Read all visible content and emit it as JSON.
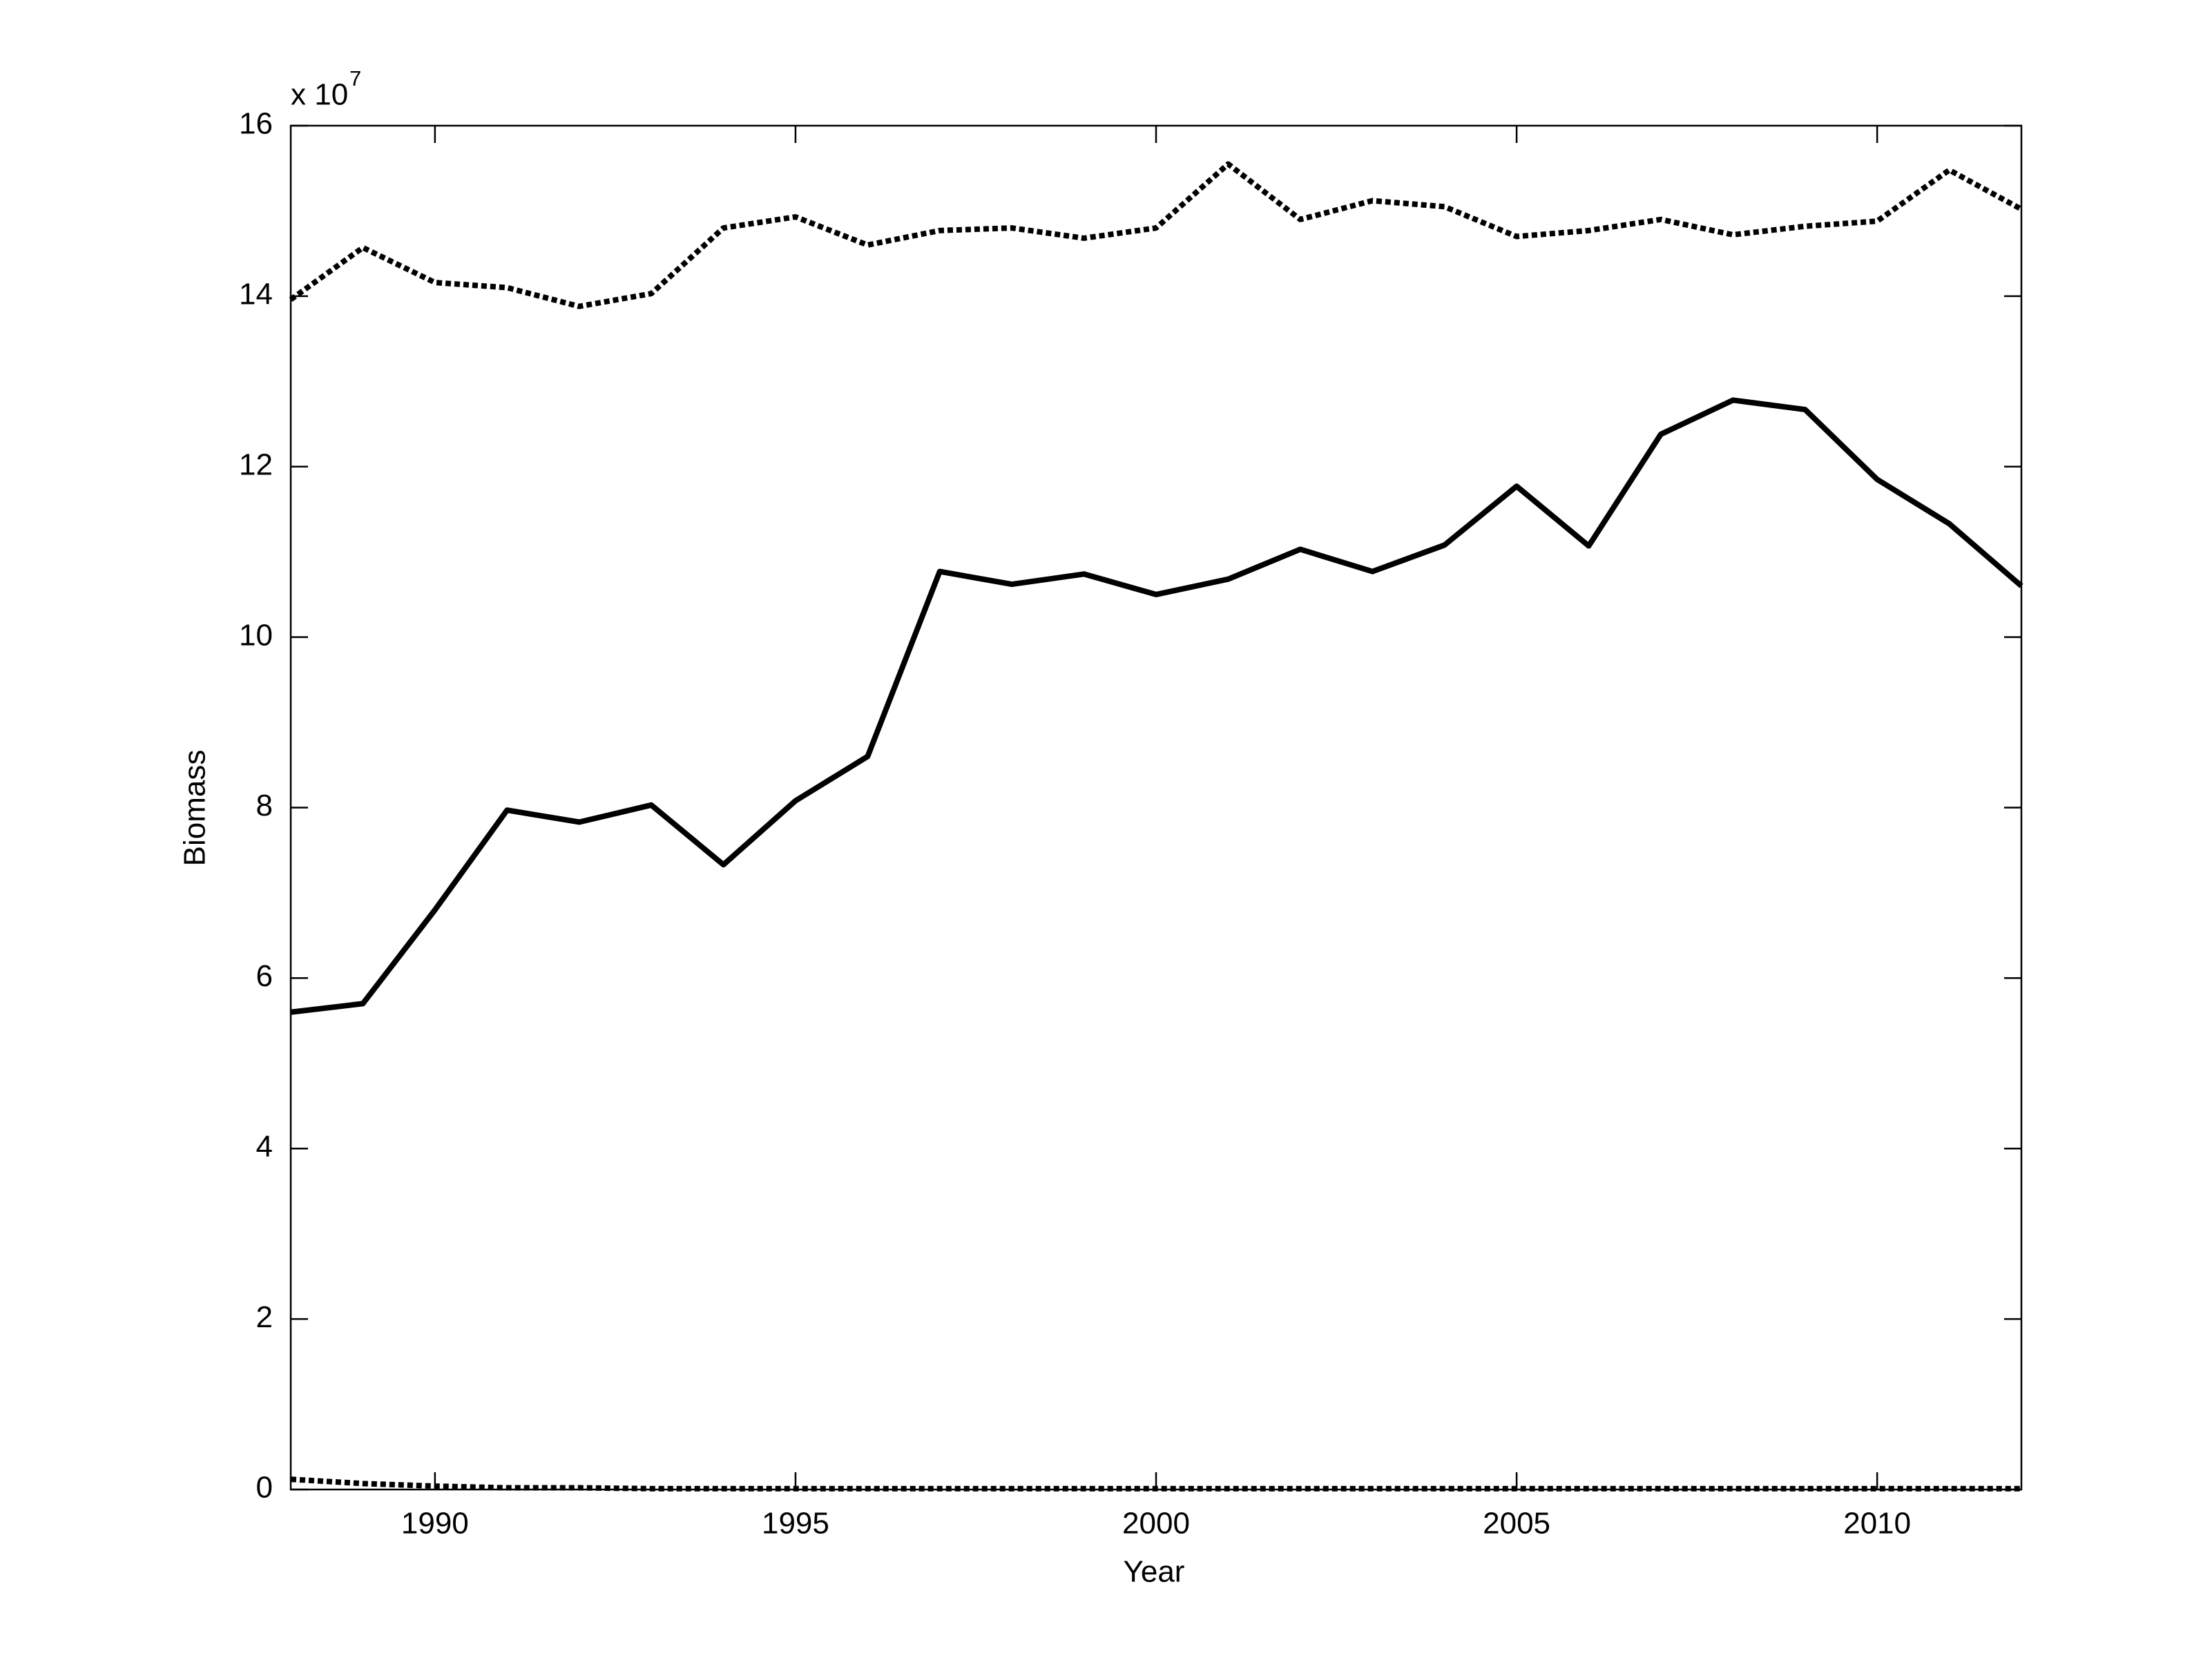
{
  "chart_data": {
    "type": "line",
    "x_label": "Year",
    "y_label": "Biomass",
    "y_multiplier": {
      "base": "x 10",
      "exponent": "7"
    },
    "x": [
      1988,
      1989,
      1990,
      1991,
      1992,
      1993,
      1994,
      1995,
      1996,
      1997,
      1998,
      1999,
      2000,
      2001,
      2002,
      2003,
      2004,
      2005,
      2006,
      2007,
      2008,
      2009,
      2010,
      2011,
      2012
    ],
    "series": [
      {
        "color": "#000000",
        "style": "solid",
        "values": [
          5.6,
          5.7,
          6.8,
          7.97,
          7.83,
          8.03,
          7.33,
          8.08,
          8.6,
          10.77,
          10.62,
          10.74,
          10.5,
          10.68,
          11.03,
          10.77,
          11.08,
          11.77,
          11.07,
          12.38,
          12.78,
          12.67,
          11.85,
          11.33,
          10.6
        ]
      },
      {
        "color": "#000000",
        "style": "dotted",
        "values": [
          13.96,
          14.57,
          14.16,
          14.1,
          13.88,
          14.03,
          14.8,
          14.93,
          14.6,
          14.77,
          14.8,
          14.68,
          14.8,
          15.55,
          14.9,
          15.12,
          15.05,
          14.7,
          14.77,
          14.9,
          14.72,
          14.82,
          14.88,
          15.48,
          15.02
        ]
      },
      {
        "color": "#000000",
        "style": "dotted",
        "values": [
          0.12,
          0.07,
          0.04,
          0.02,
          0.02,
          0.01,
          0.01,
          0.01,
          0.01,
          0.01,
          0.01,
          0.01,
          0.01,
          0.01,
          0.01,
          0.01,
          0.01,
          0.01,
          0.01,
          0.01,
          0.01,
          0.01,
          0.01,
          0.01,
          0.01
        ]
      }
    ],
    "xlim": [
      1988,
      2012
    ],
    "xticks": [
      1990,
      1995,
      2000,
      2005,
      2010
    ],
    "ylim": [
      0,
      16
    ],
    "yticks": [
      0,
      2,
      4,
      6,
      8,
      10,
      12,
      14,
      16
    ],
    "grid": false,
    "box": true
  }
}
